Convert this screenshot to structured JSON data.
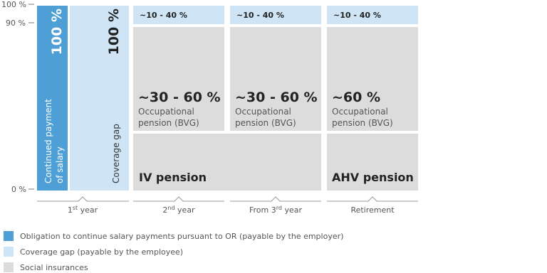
{
  "y_axis": {
    "labels": [
      "100 %",
      "90 %",
      "0 %"
    ]
  },
  "salary": {
    "value": "100 %",
    "label_lines": [
      "Continued payment",
      "of salary"
    ]
  },
  "gap": {
    "value": "100 %",
    "label": "Coverage gap"
  },
  "occupational": [
    {
      "range": "~10 - 40 %",
      "value": "~30 - 60 %",
      "label_lines": [
        "Occupational",
        "pension (BVG)"
      ]
    },
    {
      "range": "~10 - 40 %",
      "value": "~30 - 60 %",
      "label_lines": [
        "Occupational",
        "pension (BVG)"
      ]
    },
    {
      "range": "~10 - 40 %",
      "value": "~60 %",
      "label_lines": [
        "Occupational",
        "pension (BVG)"
      ]
    }
  ],
  "iv": "IV pension",
  "ahv": "AHV pension",
  "x_axis": [
    {
      "text": "1",
      "sup": "st",
      "rest": " year"
    },
    {
      "text": "2",
      "sup": "nd",
      "rest": " year"
    },
    {
      "text": "From 3",
      "sup": "rd",
      "rest": " year"
    },
    {
      "text": "Retirement"
    }
  ],
  "legend": [
    "Obligation to continue salary payments pursuant to OR (payable by the employer)",
    "Coverage gap (payable by the employee)",
    "Social insurances"
  ]
}
